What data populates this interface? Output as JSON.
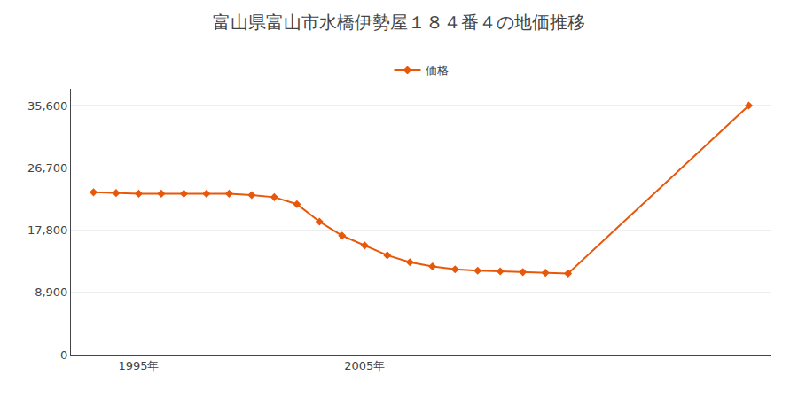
{
  "chart_data": {
    "type": "line",
    "title": "富山県富山市水橋伊勢屋１８４番４の地価推移",
    "x": [
      1993,
      1994,
      1995,
      1996,
      1997,
      1998,
      1999,
      2000,
      2001,
      2002,
      2003,
      2004,
      2005,
      2006,
      2007,
      2008,
      2009,
      2010,
      2011,
      2012,
      2013,
      2014,
      2022
    ],
    "series": [
      {
        "name": "価格",
        "color": "#e8580a",
        "marker": "diamond",
        "line_style": "solid",
        "values": [
          23200,
          23100,
          23000,
          23000,
          23000,
          23000,
          23000,
          22800,
          22500,
          21500,
          19000,
          17000,
          15600,
          14200,
          13200,
          12600,
          12200,
          12000,
          11900,
          11800,
          11700,
          11600,
          35600
        ]
      }
    ],
    "xlim": [
      1992,
      2023
    ],
    "xticks": [
      {
        "value": 1995,
        "label": "1995年"
      },
      {
        "value": 2005,
        "label": "2005年"
      }
    ],
    "ylim": [
      0,
      38000
    ],
    "yticks": [
      0,
      {
        "value": 8900,
        "label": "8,900"
      },
      {
        "value": 17800,
        "label": "17,800"
      },
      {
        "value": 26700,
        "label": "26,700"
      },
      {
        "value": 35600,
        "label": "35,600"
      }
    ],
    "grid": "y",
    "legend": "top"
  }
}
